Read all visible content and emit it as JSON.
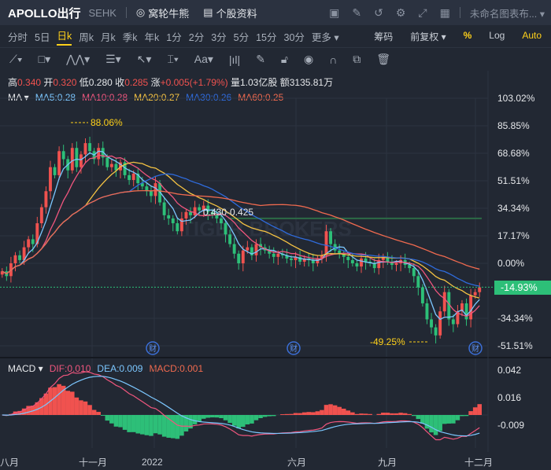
{
  "header": {
    "title": "APOLLO出行",
    "exchange": "SEHK",
    "warrants": "窝轮牛熊",
    "profile": "个股资料",
    "layout": "未命名图表布..."
  },
  "header_icons": [
    "chart-icon",
    "edit-icon",
    "refresh-icon",
    "settings-icon",
    "fullscreen-icon",
    "grid-icon"
  ],
  "periods": [
    "分时",
    "5日",
    "日k",
    "周k",
    "月k",
    "季k",
    "年k",
    "1分",
    "2分",
    "3分",
    "5分",
    "15分",
    "30分",
    "更多 ▾"
  ],
  "active_period": "日k",
  "right_options": {
    "chips": "筹码",
    "adjust": "前复权 ▾",
    "percent": "%",
    "log": "Log",
    "auto": "Auto"
  },
  "drawing_tools": [
    "line-tool-icon",
    "rectangle-tool-icon",
    "pattern-tool-icon",
    "fib-tool-icon",
    "arrow-tool-icon",
    "measure-tool-icon",
    "text-tool-icon",
    "bars-icon",
    "pen-icon",
    "lock-icon",
    "eye-icon",
    "magnet-icon",
    "copy-icon",
    "trash-icon"
  ],
  "quote": {
    "high_l": "高",
    "high": "0.340",
    "open_l": "开",
    "open": "0.320",
    "low_l": "低",
    "low": "0.280",
    "close_l": "收",
    "close": "0.285",
    "chg_l": "涨",
    "chg": "+0.005(+1.79%)",
    "vol_l": "量",
    "vol": "1.03亿股",
    "amt_l": "额",
    "amt": "3135.81万"
  },
  "ma_legend": {
    "label": "MA",
    "ma5": "MA5:0.28",
    "ma10": "MA10:0.28",
    "ma20": "MA20:0.27",
    "ma30": "MA30:0.26",
    "ma60": "MA60:0.25"
  },
  "macd_legend": {
    "label": "MACD",
    "dif": "DIF:0.010",
    "dea": "DEA:0.009",
    "macd": "MACD:0.001"
  },
  "colors": {
    "up": "#f0524f",
    "down": "#2dbf78",
    "ma5": "#7cc7ff",
    "ma10": "#f0567e",
    "ma20": "#f5c343",
    "ma30": "#2f6bdc",
    "ma60": "#f06a4f",
    "current": "#2dbf78"
  },
  "chart_data": {
    "type": "candlestick",
    "y_ticks": [
      "103.02%",
      "85.85%",
      "68.68%",
      "51.51%",
      "34.34%",
      "17.17%",
      "0.00%",
      "-34.34%",
      "-51.51%"
    ],
    "ylim": [
      -51.51,
      103.02
    ],
    "x_ticks": [
      "八月",
      "十一月",
      "2022",
      "六月",
      "九月",
      "十二月"
    ],
    "current": "-14.93%",
    "max_label": "88.06%",
    "min_label": "-49.25%",
    "range_label": "0.430-0.425",
    "hline": 28,
    "earnings_marker": "财",
    "closes": [
      -5,
      -8,
      0,
      5,
      2,
      10,
      15,
      12,
      25,
      35,
      45,
      60,
      55,
      70,
      65,
      58,
      72,
      60,
      68,
      75,
      70,
      65,
      72,
      66,
      60,
      62,
      58,
      63,
      55,
      52,
      56,
      50,
      48,
      45,
      42,
      50,
      38,
      30,
      28,
      25,
      20,
      28,
      32,
      30,
      35,
      33,
      36,
      32,
      30,
      28,
      25,
      18,
      12,
      6,
      0,
      8,
      10,
      5,
      12,
      10,
      8,
      6,
      4,
      6,
      5,
      3,
      2,
      4,
      1,
      3,
      2,
      0,
      3,
      5,
      20,
      12,
      8,
      6,
      4,
      2,
      0,
      -2,
      3,
      1,
      0,
      -3,
      2,
      4,
      1,
      -1,
      0,
      2,
      -1,
      -3,
      -8,
      -15,
      -25,
      -35,
      -40,
      -45,
      -30,
      -18,
      -35,
      -38,
      -30,
      -25,
      -35,
      -20,
      -18,
      -15
    ],
    "macd_ticks": [
      "0.042",
      "0.016",
      "-0.009"
    ]
  }
}
